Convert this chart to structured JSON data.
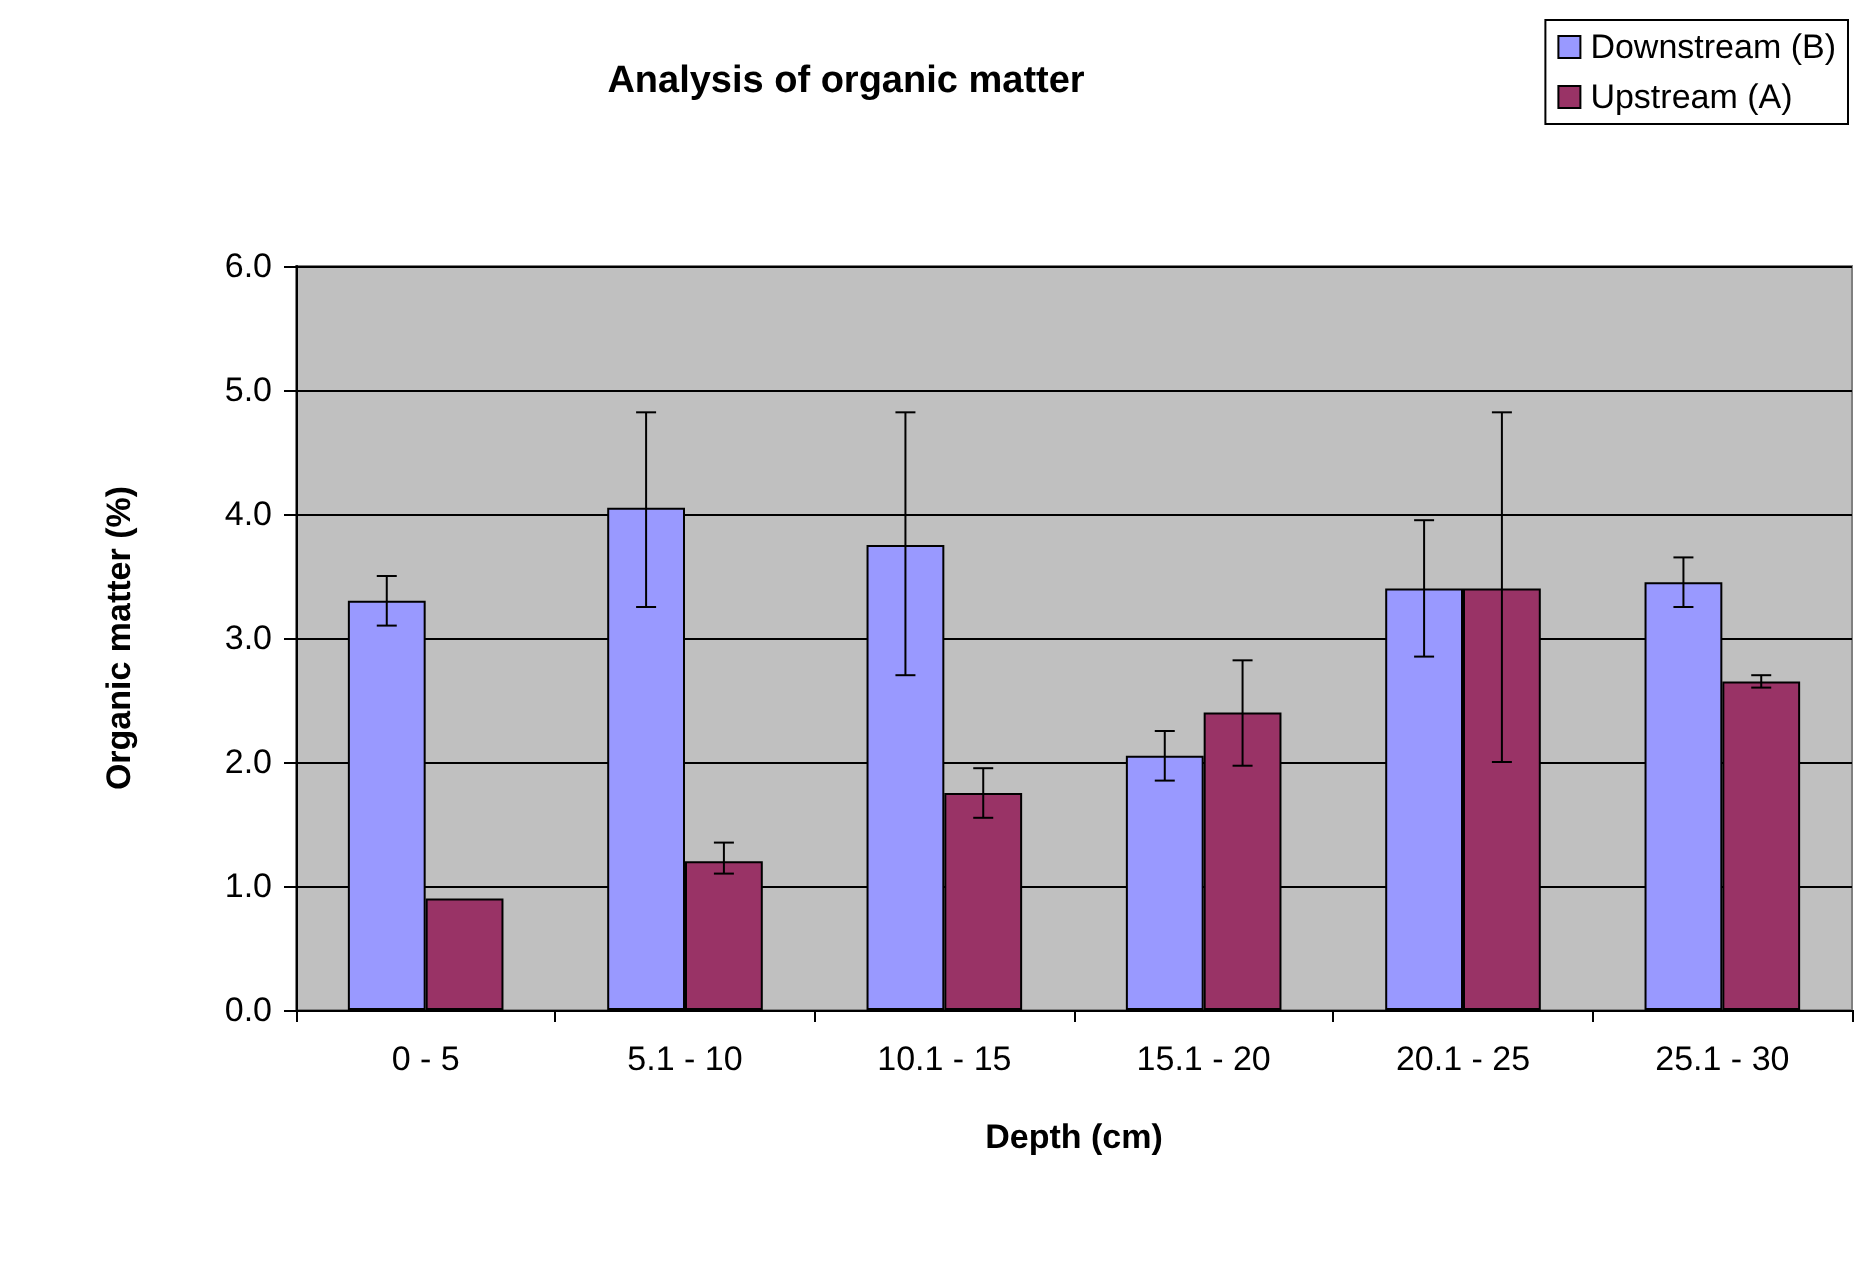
{
  "chart_data": {
    "type": "bar",
    "title": "Analysis of organic matter",
    "xlabel": "Depth (cm)",
    "ylabel": "Organic matter (%)",
    "categories": [
      "0 - 5",
      "5.1 - 10",
      "10.1 - 15",
      "15.1 - 20",
      "20.1 - 25",
      "25.1 - 30"
    ],
    "series": [
      {
        "name": "Downstream (B)",
        "color": "#9999ff",
        "values": [
          3.3,
          4.05,
          3.75,
          2.05,
          3.4,
          3.45
        ],
        "errors": [
          [
            3.1,
            3.5
          ],
          [
            3.25,
            4.82
          ],
          [
            2.7,
            4.82
          ],
          [
            1.85,
            2.25
          ],
          [
            2.85,
            3.95
          ],
          [
            3.25,
            3.65
          ]
        ]
      },
      {
        "name": "Upstream (A)",
        "color": "#993366",
        "values": [
          0.9,
          1.2,
          1.75,
          2.4,
          3.4,
          2.65
        ],
        "errors": [
          null,
          [
            1.1,
            1.35
          ],
          [
            1.55,
            1.95
          ],
          [
            1.97,
            2.82
          ],
          [
            2.0,
            4.82
          ],
          [
            2.6,
            2.7
          ]
        ]
      }
    ],
    "ylim": [
      0,
      6
    ],
    "yticks": [
      {
        "value": 0,
        "label": "0.0"
      },
      {
        "value": 1,
        "label": "1.0"
      },
      {
        "value": 2,
        "label": "2.0"
      },
      {
        "value": 3,
        "label": "3.0"
      },
      {
        "value": 4,
        "label": "4.0"
      },
      {
        "value": 5,
        "label": "5.0"
      },
      {
        "value": 6,
        "label": "6.0"
      }
    ],
    "grid": "y",
    "legend": "top right"
  }
}
